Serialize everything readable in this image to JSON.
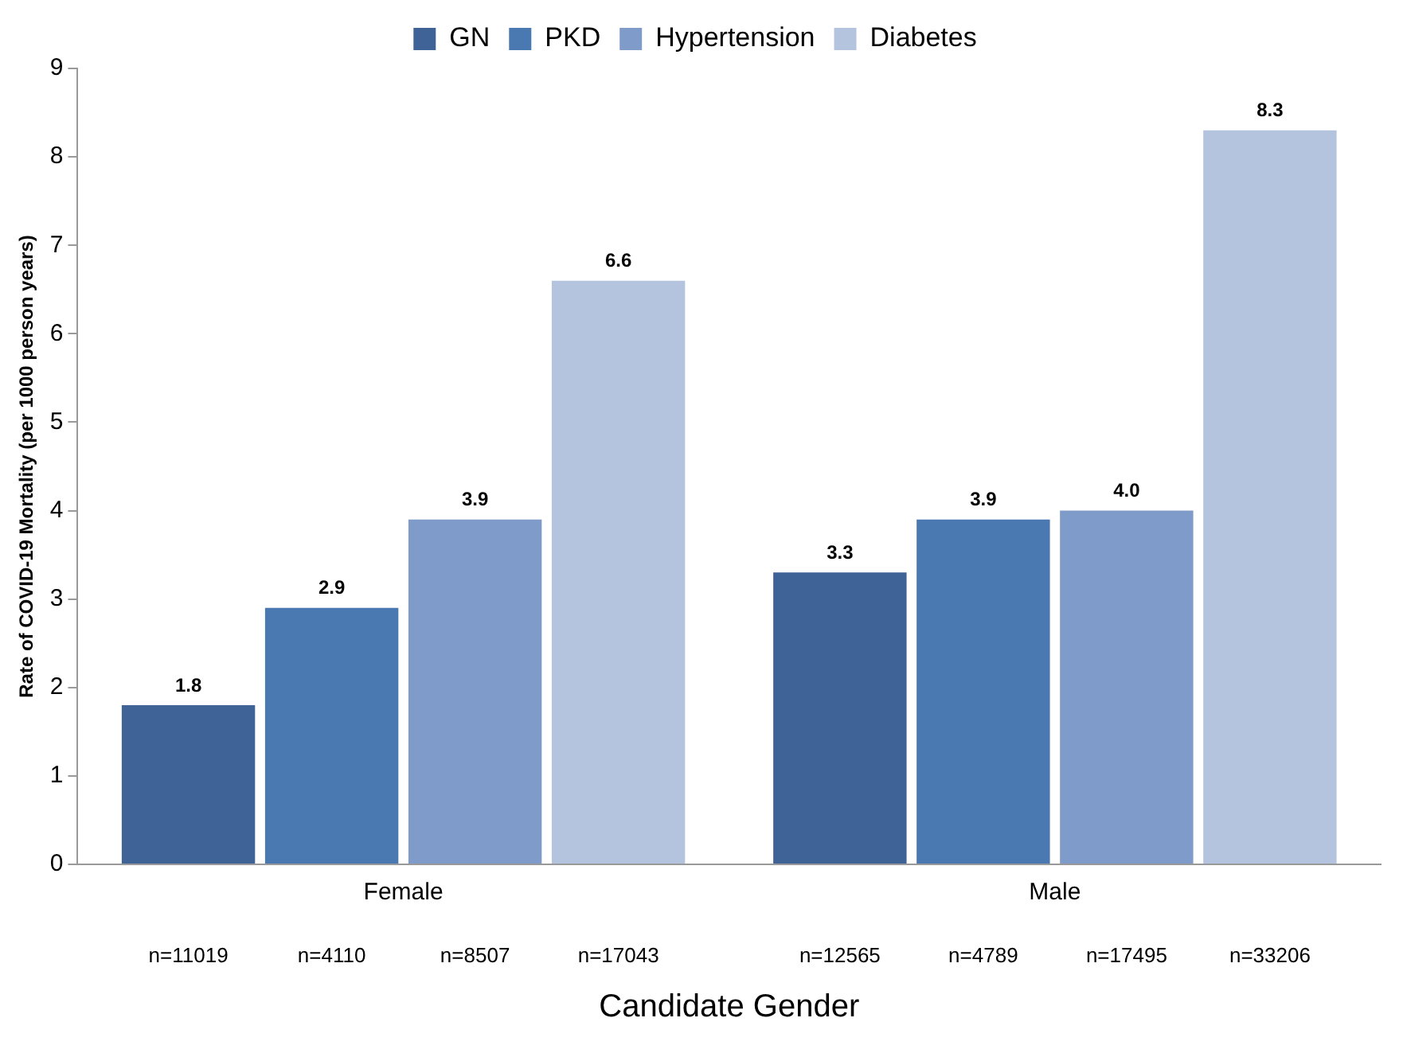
{
  "chart_data": {
    "type": "bar",
    "xlabel": "Candidate Gender",
    "ylabel": "Rate of COVID-19 Mortality (per 1000 person years)",
    "categories": [
      "Female",
      "Male"
    ],
    "series": [
      {
        "name": "GN",
        "color": "#3f6297",
        "values": [
          1.8,
          3.3
        ],
        "value_labels": [
          "1.8",
          "3.3"
        ]
      },
      {
        "name": "PKD",
        "color": "#4a78b0",
        "values": [
          2.9,
          3.9
        ],
        "value_labels": [
          "2.9",
          "3.9"
        ]
      },
      {
        "name": "Hypertension",
        "color": "#7f9bc9",
        "values": [
          3.9,
          4.0
        ],
        "value_labels": [
          "3.9",
          "4.0"
        ]
      },
      {
        "name": "Diabetes",
        "color": "#b4c4df",
        "values": [
          6.6,
          8.3
        ],
        "value_labels": [
          "6.6",
          "8.3"
        ]
      }
    ],
    "ylim": [
      0,
      9
    ],
    "yticks": [
      0,
      1,
      2,
      3,
      4,
      5,
      6,
      7,
      8,
      9
    ],
    "grid": false,
    "legend": "top",
    "annotations": [
      "n=11019",
      "n=4110",
      "n=8507",
      "n=17043",
      "n=12565",
      "n=4789",
      "n=17495",
      "n=33206"
    ]
  }
}
